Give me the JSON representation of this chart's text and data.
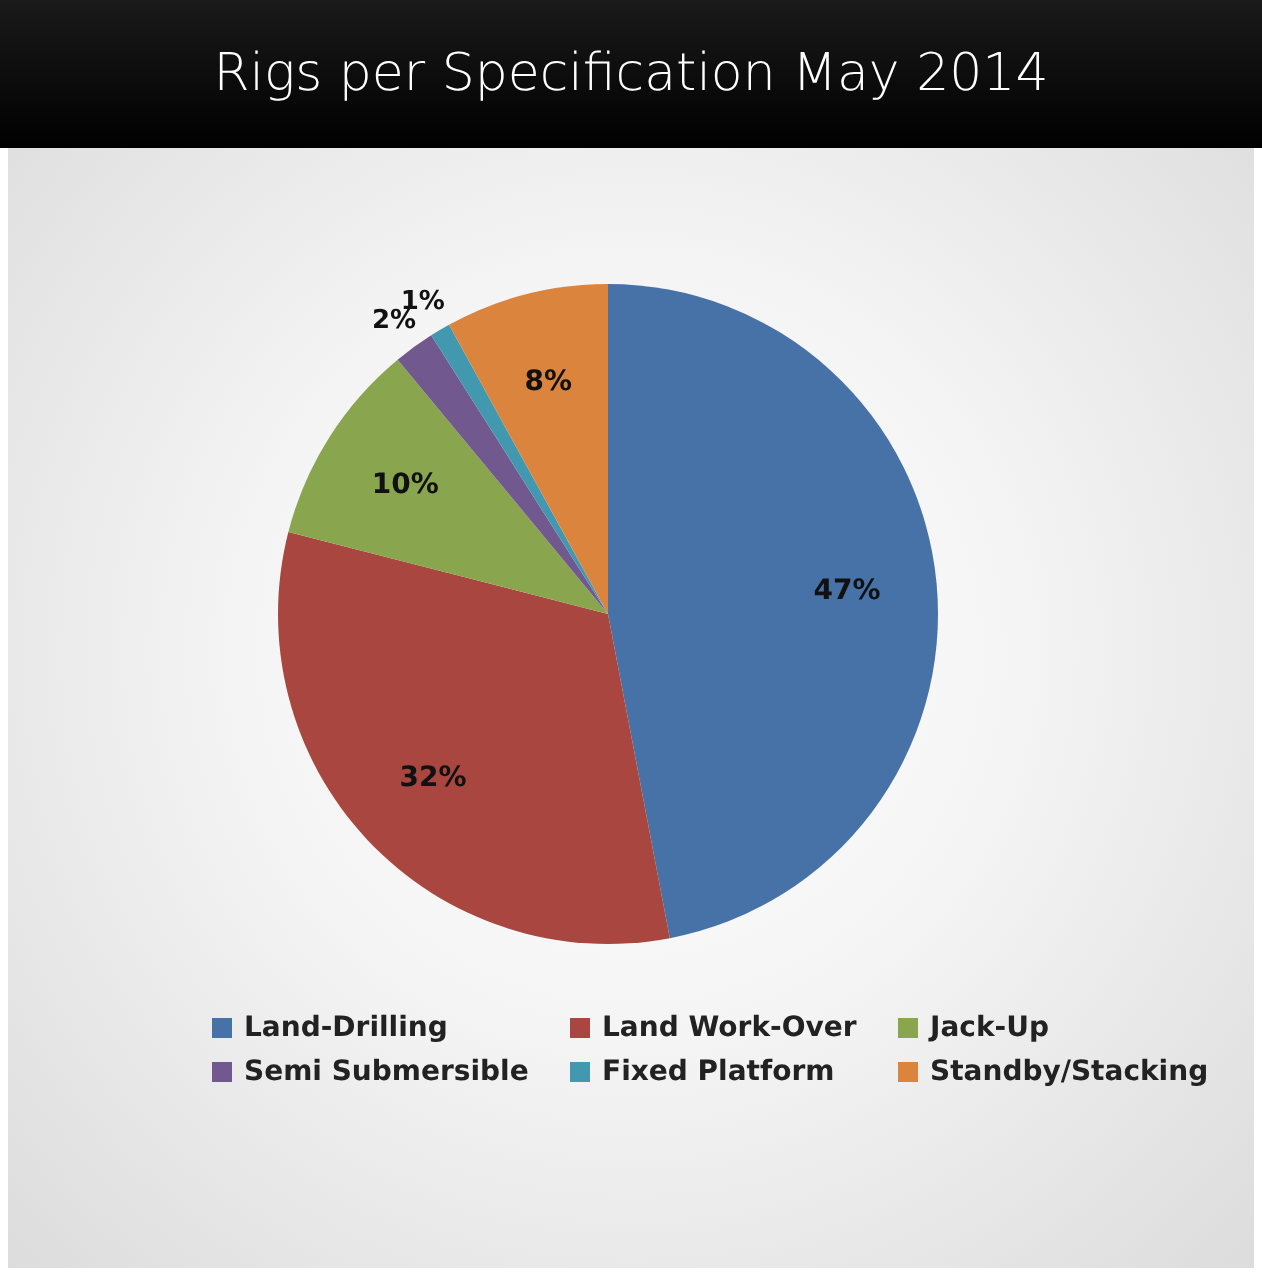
{
  "chart_data": {
    "type": "pie",
    "title": "Rigs per Specification May 2014",
    "categories": [
      "Land-Drilling",
      "Land Work-Over",
      "Jack-Up",
      "Semi Submersible",
      "Fixed Platform",
      "Standby/Stacking"
    ],
    "values": [
      47,
      32,
      10,
      2,
      1,
      8
    ],
    "colors": [
      "#4672a8",
      "#a8463f",
      "#89a54e",
      "#71588f",
      "#4298af",
      "#db843d"
    ],
    "value_labels": [
      "47%",
      "32%",
      "10%",
      "2%",
      "1%",
      "8%"
    ],
    "legend": "bottom"
  }
}
